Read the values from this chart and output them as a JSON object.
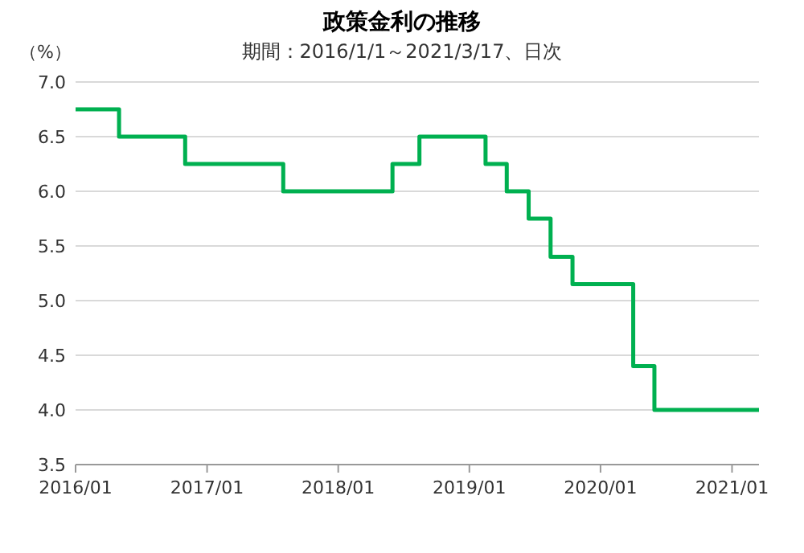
{
  "chart_data": {
    "type": "step",
    "title": "政策金利の推移",
    "subtitle": "期間：2016/1/1～2021/3/17、日次",
    "ylabel": "（%）",
    "x": [
      "2016-01-01",
      "2016-05-01",
      "2016-11-01",
      "2017-08-01",
      "2018-06-01",
      "2018-08-15",
      "2019-02-15",
      "2019-04-15",
      "2019-06-15",
      "2019-08-15",
      "2019-10-15",
      "2020-04-01",
      "2020-05-30",
      "2021-03-17"
    ],
    "series": [
      {
        "color": "#00b050",
        "values": [
          6.75,
          6.5,
          6.25,
          6.0,
          6.25,
          6.5,
          6.25,
          6.0,
          5.75,
          5.4,
          5.15,
          4.4,
          4.0,
          4.0
        ]
      }
    ],
    "xlim": [
      "2016-01-01",
      "2021-03-17"
    ],
    "xticks": [
      {
        "value": "2016-01-01",
        "label": "2016/01"
      },
      {
        "value": "2017-01-01",
        "label": "2017/01"
      },
      {
        "value": "2018-01-01",
        "label": "2018/01"
      },
      {
        "value": "2019-01-01",
        "label": "2019/01"
      },
      {
        "value": "2020-01-01",
        "label": "2020/01"
      },
      {
        "value": "2021-01-01",
        "label": "2021/01"
      }
    ],
    "ylim": [
      3.5,
      7.0
    ],
    "yticks": [
      {
        "value": 3.5,
        "label": "3.5"
      },
      {
        "value": 4,
        "label": "4.0"
      },
      {
        "value": 4.5,
        "label": "4.5"
      },
      {
        "value": 5,
        "label": "5.0"
      },
      {
        "value": 5.5,
        "label": "5.5"
      },
      {
        "value": 6,
        "label": "6.0"
      },
      {
        "value": 6.5,
        "label": "6.5"
      },
      {
        "value": 7,
        "label": "7.0"
      }
    ],
    "grid": "y"
  }
}
